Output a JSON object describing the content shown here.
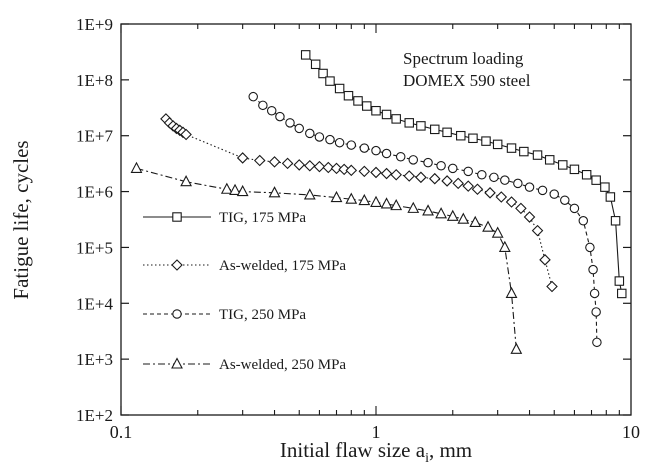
{
  "chart_data": {
    "type": "scatter",
    "xlabel": "Initial flaw size a",
    "xlabel_subscript": "i",
    "xlabel_suffix": ", mm",
    "ylabel": "Fatigue life, cycles",
    "xscale": "log",
    "yscale": "log",
    "xlim": [
      0.1,
      10
    ],
    "ylim": [
      100,
      1000000000
    ],
    "x_ticks": [
      0.1,
      1,
      10
    ],
    "x_tick_labels": [
      "0.1",
      "1",
      "10"
    ],
    "y_ticks": [
      100,
      1000,
      10000,
      100000,
      1000000,
      10000000,
      100000000,
      1000000000
    ],
    "y_tick_labels": [
      "1E+2",
      "1E+3",
      "1E+4",
      "1E+5",
      "1E+6",
      "1E+7",
      "1E+8",
      "1E+9"
    ],
    "grid": false,
    "annotation": [
      "Spectrum loading",
      "DOMEX 590 steel"
    ],
    "legend_position": "left",
    "series": [
      {
        "name": "TIG, 175 MPa",
        "marker": "square",
        "line": "solid",
        "x": [
          0.53,
          0.58,
          0.62,
          0.66,
          0.72,
          0.78,
          0.85,
          0.92,
          1.0,
          1.1,
          1.2,
          1.35,
          1.5,
          1.7,
          1.9,
          2.15,
          2.4,
          2.7,
          3.0,
          3.4,
          3.8,
          4.3,
          4.8,
          5.4,
          6.0,
          6.7,
          7.3,
          7.9,
          8.3,
          8.7,
          9.0,
          9.2
        ],
        "y": [
          280000000,
          190000000,
          130000000,
          95000000,
          70000000,
          52000000,
          42000000,
          34000000,
          28000000,
          24000000,
          20000000,
          17000000,
          15000000,
          13000000,
          11500000,
          10000000,
          9000000,
          8000000,
          7000000,
          6000000,
          5200000,
          4500000,
          3700000,
          3000000,
          2500000,
          2000000,
          1600000,
          1200000,
          800000,
          300000,
          25000,
          15000
        ]
      },
      {
        "name": "As-welded, 175 MPa",
        "marker": "diamond",
        "line": "dotted",
        "x": [
          0.15,
          0.155,
          0.16,
          0.165,
          0.17,
          0.175,
          0.18,
          0.3,
          0.35,
          0.4,
          0.45,
          0.5,
          0.55,
          0.6,
          0.65,
          0.7,
          0.75,
          0.8,
          0.9,
          1.0,
          1.1,
          1.2,
          1.35,
          1.5,
          1.7,
          1.9,
          2.1,
          2.3,
          2.5,
          2.8,
          3.1,
          3.4,
          3.7,
          4.0,
          4.3,
          4.6,
          4.9
        ],
        "y": [
          20000000,
          17000000,
          15000000,
          13500000,
          12500000,
          11500000,
          10500000,
          4000000,
          3600000,
          3400000,
          3200000,
          3000000,
          2900000,
          2800000,
          2700000,
          2600000,
          2500000,
          2400000,
          2300000,
          2200000,
          2100000,
          2000000,
          1900000,
          1800000,
          1700000,
          1550000,
          1400000,
          1250000,
          1100000,
          950000,
          800000,
          650000,
          500000,
          350000,
          200000,
          60000,
          20000
        ]
      },
      {
        "name": "TIG, 250 MPa",
        "marker": "circle",
        "line": "dashed",
        "x": [
          0.33,
          0.36,
          0.39,
          0.42,
          0.46,
          0.5,
          0.55,
          0.6,
          0.66,
          0.72,
          0.8,
          0.9,
          1.0,
          1.1,
          1.25,
          1.4,
          1.6,
          1.8,
          2.0,
          2.3,
          2.6,
          2.9,
          3.2,
          3.6,
          4.0,
          4.5,
          5.0,
          5.5,
          6.0,
          6.5,
          6.9,
          7.1,
          7.2,
          7.3,
          7.35
        ],
        "y": [
          50000000,
          35000000,
          28000000,
          22000000,
          17000000,
          13500000,
          11000000,
          9500000,
          8500000,
          7500000,
          6800000,
          6000000,
          5400000,
          4800000,
          4200000,
          3700000,
          3300000,
          2900000,
          2600000,
          2300000,
          2000000,
          1800000,
          1600000,
          1400000,
          1200000,
          1050000,
          900000,
          700000,
          500000,
          300000,
          100000,
          40000,
          15000,
          7000,
          2000
        ]
      },
      {
        "name": "As-welded, 250 MPa",
        "marker": "triangle",
        "line": "dash-dot",
        "x": [
          0.115,
          0.18,
          0.26,
          0.28,
          0.3,
          0.4,
          0.55,
          0.7,
          0.8,
          0.9,
          1.0,
          1.1,
          1.2,
          1.4,
          1.6,
          1.8,
          2.0,
          2.2,
          2.45,
          2.75,
          3.0,
          3.2,
          3.4,
          3.55
        ],
        "y": [
          2600000,
          1500000,
          1100000,
          1050000,
          1000000,
          950000,
          870000,
          780000,
          730000,
          690000,
          640000,
          600000,
          560000,
          500000,
          450000,
          400000,
          360000,
          320000,
          280000,
          230000,
          180000,
          100000,
          15000,
          1500
        ]
      }
    ]
  }
}
